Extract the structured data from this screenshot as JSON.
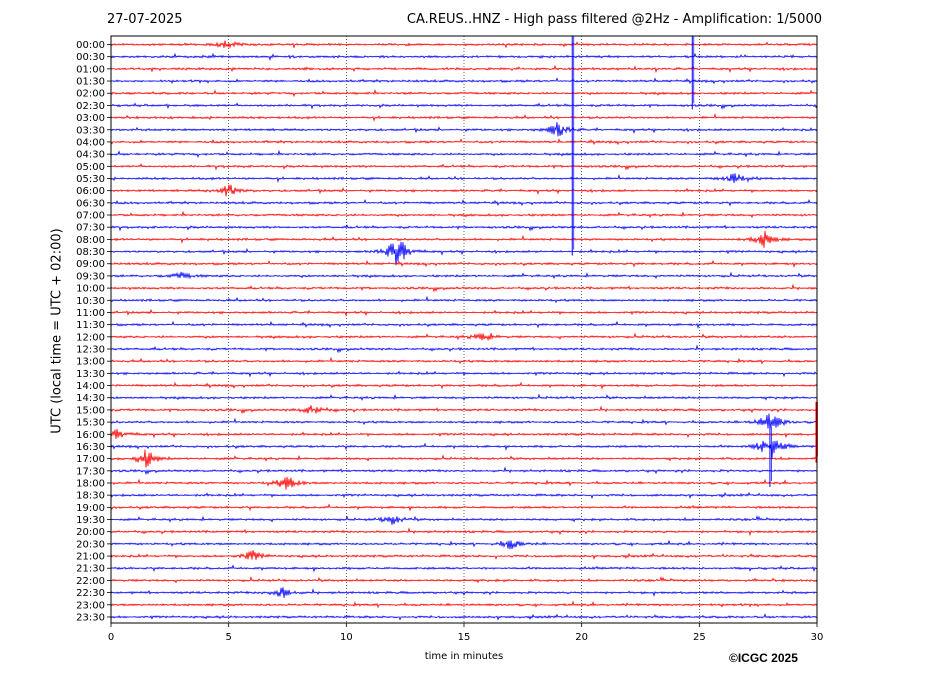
{
  "header": {
    "date": "27-07-2025",
    "title": "CA.REUS..HNZ - High pass filtered @2Hz - Amplification: 1/5000"
  },
  "footer": {
    "credit": "©ICGC 2025"
  },
  "chart_data": {
    "type": "line",
    "title": "CA.REUS..HNZ - High pass filtered @2Hz - Amplification: 1/5000",
    "xlabel": "time in minutes",
    "ylabel": "UTC (local time = UTC + 02:00)",
    "xlim": [
      0,
      30
    ],
    "x_ticks": [
      "0",
      "5",
      "10",
      "15",
      "20",
      "25",
      "30"
    ],
    "grid": "vertical dotted lines at 5-minute intervals",
    "colors": {
      "even_rows": "#ff0000",
      "odd_rows": "#0000ff"
    },
    "rows": [
      "00:00",
      "00:30",
      "01:00",
      "01:30",
      "02:00",
      "02:30",
      "03:00",
      "03:30",
      "04:00",
      "04:30",
      "05:00",
      "05:30",
      "06:00",
      "06:30",
      "07:00",
      "07:30",
      "08:00",
      "08:30",
      "09:00",
      "09:30",
      "10:00",
      "10:30",
      "11:00",
      "11:30",
      "12:00",
      "12:30",
      "13:00",
      "13:30",
      "14:00",
      "14:30",
      "15:00",
      "15:30",
      "16:00",
      "16:30",
      "17:00",
      "17:30",
      "18:00",
      "18:30",
      "19:00",
      "19:30",
      "20:00",
      "20:30",
      "21:00",
      "21:30",
      "22:00",
      "22:30",
      "23:00",
      "23:30"
    ],
    "events": [
      {
        "row": "08:30",
        "minute": 12.2,
        "amplitude": 18
      },
      {
        "row": "08:00",
        "minute": 27.8,
        "amplitude": 9
      },
      {
        "row": "17:00",
        "minute": 1.5,
        "amplitude": 10
      },
      {
        "row": "16:30",
        "minute": 28.0,
        "amplitude": 16
      },
      {
        "row": "15:30",
        "minute": 28.0,
        "amplitude": 12
      },
      {
        "row": "03:30",
        "minute": 19.0,
        "amplitude": 8
      },
      {
        "row": "05:30",
        "minute": 26.5,
        "amplitude": 7
      },
      {
        "row": "06:00",
        "minute": 5.0,
        "amplitude": 7
      },
      {
        "row": "18:00",
        "minute": 7.5,
        "amplitude": 8
      },
      {
        "row": "19:30",
        "minute": 12.0,
        "amplitude": 6
      },
      {
        "row": "20:30",
        "minute": 17.0,
        "amplitude": 6
      },
      {
        "row": "15:00",
        "minute": 8.6,
        "amplitude": 6
      },
      {
        "row": "16:00",
        "minute": 0.3,
        "amplitude": 6
      },
      {
        "row": "22:30",
        "minute": 7.3,
        "amplitude": 6
      },
      {
        "row": "00:00",
        "minute": 5.0,
        "amplitude": 5
      },
      {
        "row": "09:30",
        "minute": 3.0,
        "amplitude": 4
      },
      {
        "row": "21:00",
        "minute": 6.0,
        "amplitude": 6
      },
      {
        "row": "12:00",
        "minute": 15.8,
        "amplitude": 5
      }
    ],
    "spikes": [
      {
        "minute": 19.6,
        "from_row": "00:00",
        "to_row": "08:30",
        "color": "#0000ff"
      },
      {
        "minute": 24.7,
        "from_row": "00:00",
        "to_row": "02:30",
        "color": "#0000ff"
      },
      {
        "minute": 28.0,
        "from_row": "16:00",
        "to_row": "18:00",
        "color": "#0000ff"
      },
      {
        "minute": 30.0,
        "from_row": "15:00",
        "to_row": "17:00",
        "color": "#ff0000"
      }
    ]
  }
}
